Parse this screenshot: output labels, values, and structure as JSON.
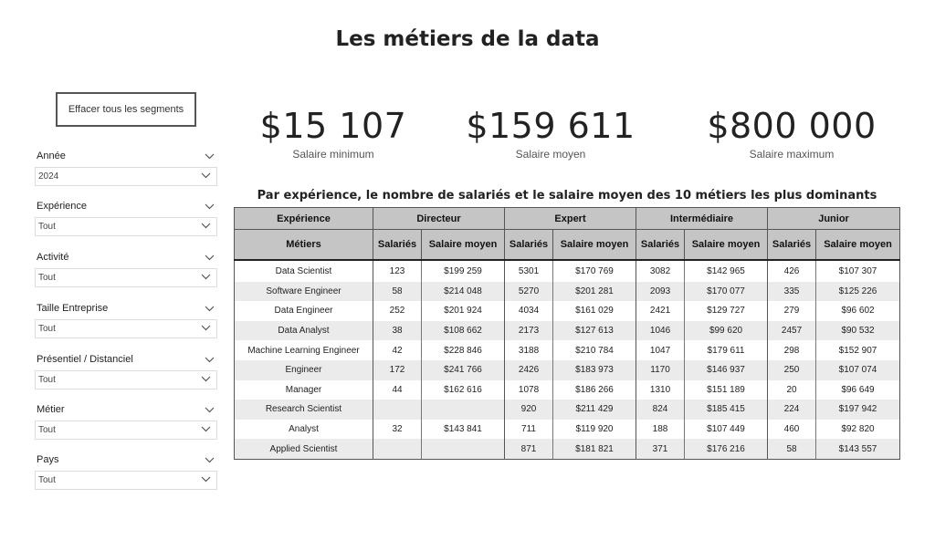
{
  "page": {
    "title": "Les métiers de la data"
  },
  "clear_button": {
    "label": "Effacer tous les segments"
  },
  "slicers": {
    "annee": {
      "label": "Année",
      "value": "2024"
    },
    "experience": {
      "label": "Expérience",
      "value": "Tout"
    },
    "activite": {
      "label": "Activité",
      "value": "Tout"
    },
    "taille": {
      "label": "Taille Entreprise",
      "value": "Tout"
    },
    "presentiel": {
      "label": "Présentiel / Distanciel",
      "value": "Tout"
    },
    "metier": {
      "label": "Métier",
      "value": "Tout"
    },
    "pays": {
      "label": "Pays",
      "value": "Tout"
    }
  },
  "kpis": {
    "min": {
      "value": "$15 107",
      "label": "Salaire minimum"
    },
    "avg": {
      "value": "$159 611",
      "label": "Salaire moyen"
    },
    "max": {
      "value": "$800 000",
      "label": "Salaire maximum"
    }
  },
  "table": {
    "title": "Par expérience, le nombre de salariés et le salaire moyen des 10 métiers les plus dominants",
    "corner_top": "Expérience",
    "corner_bottom": "Métiers",
    "groups": [
      "Directeur",
      "Expert",
      "Intermédiaire",
      "Junior"
    ],
    "col_count": "Salariés",
    "col_avg": "Salaire moyen",
    "rows": [
      {
        "metier": "Data Scientist",
        "cells": [
          "123",
          "$199 259",
          "5301",
          "$170 769",
          "3082",
          "$142 965",
          "426",
          "$107 307"
        ]
      },
      {
        "metier": "Software Engineer",
        "cells": [
          "58",
          "$214 048",
          "5270",
          "$201 281",
          "2093",
          "$170 077",
          "335",
          "$125 226"
        ]
      },
      {
        "metier": "Data Engineer",
        "cells": [
          "252",
          "$201 924",
          "4034",
          "$161 029",
          "2421",
          "$129 727",
          "279",
          "$96 602"
        ]
      },
      {
        "metier": "Data Analyst",
        "cells": [
          "38",
          "$108 662",
          "2173",
          "$127 613",
          "1046",
          "$99 620",
          "2457",
          "$90 532"
        ]
      },
      {
        "metier": "Machine Learning Engineer",
        "cells": [
          "42",
          "$228 846",
          "3188",
          "$210 784",
          "1047",
          "$179 611",
          "298",
          "$152 907"
        ]
      },
      {
        "metier": "Engineer",
        "cells": [
          "172",
          "$241 766",
          "2426",
          "$183 973",
          "1170",
          "$146 937",
          "250",
          "$107 074"
        ]
      },
      {
        "metier": "Manager",
        "cells": [
          "44",
          "$162 616",
          "1078",
          "$186 266",
          "1310",
          "$151 189",
          "20",
          "$96 649"
        ]
      },
      {
        "metier": "Research Scientist",
        "cells": [
          "",
          "",
          "920",
          "$211 429",
          "824",
          "$185 415",
          "224",
          "$197 942"
        ]
      },
      {
        "metier": "Analyst",
        "cells": [
          "32",
          "$143 841",
          "711",
          "$119 920",
          "188",
          "$107 449",
          "460",
          "$92 820"
        ]
      },
      {
        "metier": "Applied Scientist",
        "cells": [
          "",
          "",
          "871",
          "$181 821",
          "371",
          "$176 216",
          "58",
          "$143 557"
        ]
      }
    ]
  },
  "icons": {
    "slicer_toggle": "chevron-down-icon",
    "dropdown": "chevron-down-icon"
  }
}
